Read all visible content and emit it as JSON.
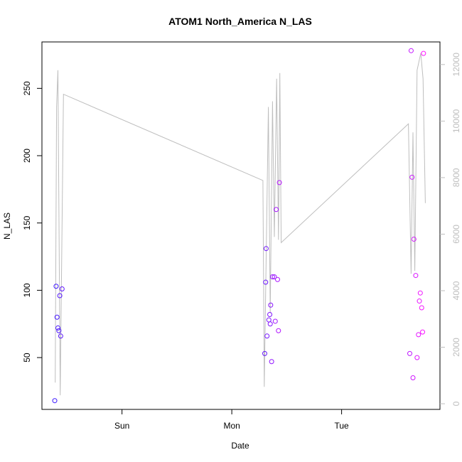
{
  "chart_data": {
    "type": "scatter",
    "title": "ATOM1 North_America N_LAS",
    "xlabel": "Date",
    "ylabel": "N_LAS",
    "x_ticks": [
      {
        "label": "Sun",
        "value": 24
      },
      {
        "label": "Mon",
        "value": 48
      },
      {
        "label": "Tue",
        "value": 72
      }
    ],
    "xlim": [
      6.5,
      93.5
    ],
    "ylim": [
      11.5,
      284.5
    ],
    "y_ticks": [
      50,
      100,
      150,
      200,
      250
    ],
    "y2lim": [
      -200,
      12800
    ],
    "y2_ticks": [
      0,
      2000,
      4000,
      6000,
      8000,
      10000,
      12000
    ],
    "x_unit": "hours since Sat 00:00",
    "grid": false,
    "series": [
      {
        "kind": "points",
        "axis": "left",
        "color_start": "#3a16ff",
        "color_end": "#ff16ff",
        "points": [
          {
            "x": 9.3,
            "y": 18
          },
          {
            "x": 9.6,
            "y": 103
          },
          {
            "x": 9.8,
            "y": 80
          },
          {
            "x": 10.0,
            "y": 72
          },
          {
            "x": 10.2,
            "y": 70
          },
          {
            "x": 10.4,
            "y": 96
          },
          {
            "x": 10.6,
            "y": 66
          },
          {
            "x": 10.9,
            "y": 101
          },
          {
            "x": 55.2,
            "y": 53
          },
          {
            "x": 55.4,
            "y": 106
          },
          {
            "x": 55.5,
            "y": 131
          },
          {
            "x": 55.7,
            "y": 66
          },
          {
            "x": 56.1,
            "y": 78
          },
          {
            "x": 56.3,
            "y": 82
          },
          {
            "x": 56.4,
            "y": 75
          },
          {
            "x": 56.5,
            "y": 89
          },
          {
            "x": 56.7,
            "y": 47
          },
          {
            "x": 56.9,
            "y": 110
          },
          {
            "x": 57.3,
            "y": 110
          },
          {
            "x": 57.5,
            "y": 77
          },
          {
            "x": 57.7,
            "y": 160
          },
          {
            "x": 58.0,
            "y": 108
          },
          {
            "x": 58.2,
            "y": 70
          },
          {
            "x": 58.4,
            "y": 180
          },
          {
            "x": 86.9,
            "y": 53
          },
          {
            "x": 87.2,
            "y": 278
          },
          {
            "x": 87.4,
            "y": 184
          },
          {
            "x": 87.6,
            "y": 35
          },
          {
            "x": 87.8,
            "y": 138
          },
          {
            "x": 88.2,
            "y": 111
          },
          {
            "x": 88.5,
            "y": 50
          },
          {
            "x": 88.8,
            "y": 67
          },
          {
            "x": 89.0,
            "y": 92
          },
          {
            "x": 89.2,
            "y": 98
          },
          {
            "x": 89.5,
            "y": 87
          },
          {
            "x": 89.7,
            "y": 69
          },
          {
            "x": 89.9,
            "y": 276
          }
        ]
      },
      {
        "kind": "line",
        "axis": "right",
        "color": "#bebebe",
        "points": [
          {
            "x": 9.4,
            "y": 750
          },
          {
            "x": 9.7,
            "y": 10500
          },
          {
            "x": 10.0,
            "y": 11800
          },
          {
            "x": 10.5,
            "y": 300
          },
          {
            "x": 11.2,
            "y": 10950
          },
          {
            "x": 54.8,
            "y": 7900
          },
          {
            "x": 55.1,
            "y": 600
          },
          {
            "x": 56.0,
            "y": 10500
          },
          {
            "x": 56.4,
            "y": 3200
          },
          {
            "x": 56.9,
            "y": 10700
          },
          {
            "x": 57.3,
            "y": 5900
          },
          {
            "x": 57.8,
            "y": 11500
          },
          {
            "x": 58.2,
            "y": 5800
          },
          {
            "x": 58.5,
            "y": 11700
          },
          {
            "x": 58.8,
            "y": 5700
          },
          {
            "x": 86.6,
            "y": 9900
          },
          {
            "x": 87.2,
            "y": 4600
          },
          {
            "x": 87.6,
            "y": 9600
          },
          {
            "x": 88.0,
            "y": 4700
          },
          {
            "x": 88.5,
            "y": 11800
          },
          {
            "x": 89.3,
            "y": 12400
          },
          {
            "x": 89.8,
            "y": 11500
          },
          {
            "x": 90.3,
            "y": 7100
          }
        ]
      }
    ]
  }
}
